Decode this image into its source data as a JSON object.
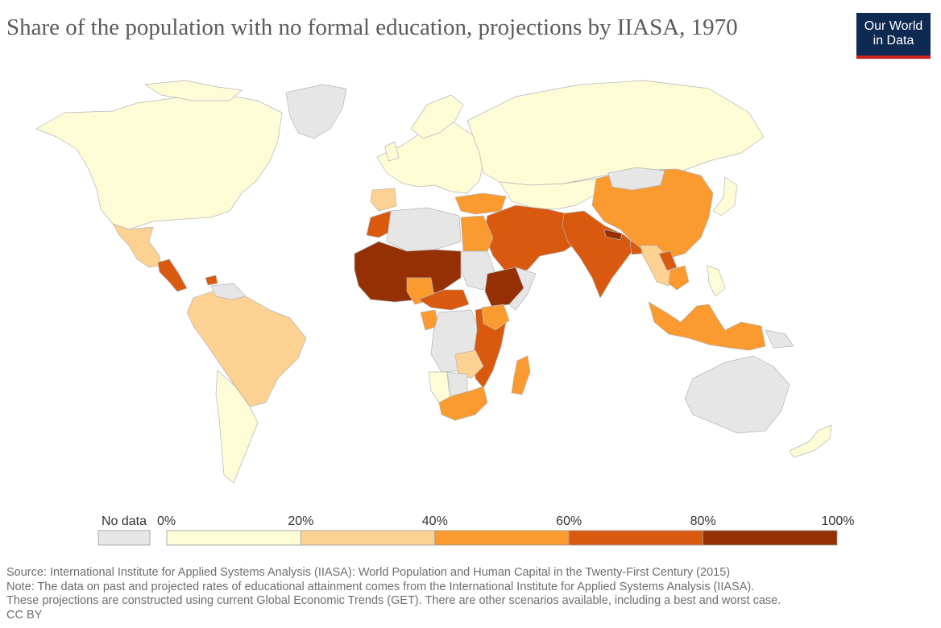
{
  "title": "Share of the population with no formal education, projections by IIASA, 1970",
  "logo": {
    "line1": "Our World",
    "line2": "in Data",
    "bg_color": "#0f2a52",
    "accent_color": "#ce261e"
  },
  "legend": {
    "no_data_label": "No data",
    "no_data_color": "#e6e6e6",
    "ticks": [
      "0%",
      "20%",
      "40%",
      "60%",
      "80%",
      "100%"
    ],
    "bins": [
      {
        "range": "0–20%",
        "color": "#fefcd6"
      },
      {
        "range": "20–40%",
        "color": "#fcd191"
      },
      {
        "range": "40–60%",
        "color": "#fb9a2f"
      },
      {
        "range": "60–80%",
        "color": "#d9590f"
      },
      {
        "range": "80–100%",
        "color": "#953004"
      }
    ]
  },
  "regions": [
    {
      "region": "North America",
      "bin": "0–20%"
    },
    {
      "region": "Greenland",
      "bin": "No data"
    },
    {
      "region": "Mexico",
      "bin": "20–40%"
    },
    {
      "region": "Central America",
      "bin": "60–80%"
    },
    {
      "region": "Haiti",
      "bin": "60–80%"
    },
    {
      "region": "South America (north)",
      "bin": "20–40%"
    },
    {
      "region": "South America (south)",
      "bin": "0–20%"
    },
    {
      "region": "Europe",
      "bin": "0–20%"
    },
    {
      "region": "Iberia",
      "bin": "20–40%"
    },
    {
      "region": "Russia",
      "bin": "0–20%"
    },
    {
      "region": "Central Asia",
      "bin": "0–20%"
    },
    {
      "region": "Turkey",
      "bin": "40–60%"
    },
    {
      "region": "Middle East",
      "bin": "60–80%"
    },
    {
      "region": "South Asia",
      "bin": "60–80%"
    },
    {
      "region": "Nepal",
      "bin": "80–100%"
    },
    {
      "region": "China",
      "bin": "40–60%"
    },
    {
      "region": "Mongolia",
      "bin": "No data"
    },
    {
      "region": "Japan",
      "bin": "0–20%"
    },
    {
      "region": "Myanmar / Thailand",
      "bin": "20–40%"
    },
    {
      "region": "Laos",
      "bin": "60–80%"
    },
    {
      "region": "Indonesia",
      "bin": "40–60%"
    },
    {
      "region": "Philippines",
      "bin": "0–20%"
    },
    {
      "region": "Australia",
      "bin": "No data"
    },
    {
      "region": "New Zealand",
      "bin": "0–20%"
    },
    {
      "region": "North Africa (Maghreb)",
      "bin": "60–80%"
    },
    {
      "region": "Algeria / Libya",
      "bin": "No data"
    },
    {
      "region": "Egypt",
      "bin": "40–60%"
    },
    {
      "region": "West Africa",
      "bin": "80–100%"
    },
    {
      "region": "Ethiopia",
      "bin": "80–100%"
    },
    {
      "region": "Central Africa",
      "bin": "60–80%"
    },
    {
      "region": "East Africa",
      "bin": "60–80%"
    },
    {
      "region": "Southern Africa",
      "bin": "40–60%"
    },
    {
      "region": "Namibia",
      "bin": "0–20%"
    },
    {
      "region": "Madagascar",
      "bin": "40–60%"
    }
  ],
  "footer": {
    "source": "Source: International Institute for Applied Systems Analysis (IIASA): World Population and Human Capital in the Twenty-First Century (2015)",
    "note1": "Note: The data on past and projected rates of educational attainment comes from the International Institute for Applied Systems Analysis (IIASA).",
    "note2": "These projections are constructed using current Global Economic Trends (GET). There are other scenarios available, including a best and worst case.",
    "license": "CC BY"
  }
}
